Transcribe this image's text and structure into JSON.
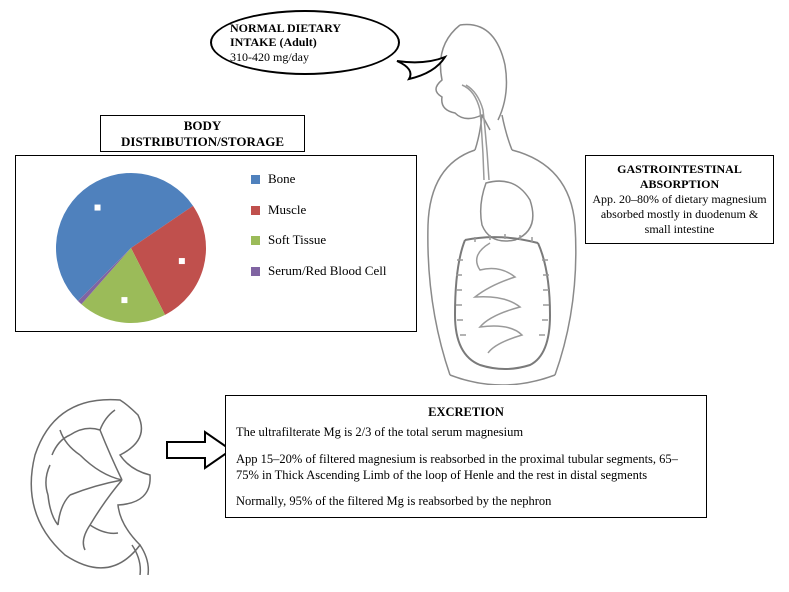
{
  "intake_bubble": {
    "line1": "NORMAL DIETARY",
    "line2": "INTAKE (Adult)",
    "line3": "310-420 mg/day"
  },
  "distribution": {
    "title_line1": "BODY",
    "title_line2": "DISTRIBUTION/STORAGE",
    "chart": {
      "type": "pie",
      "radius": 75,
      "rotation_deg": 135,
      "background": "#ffffff",
      "border_color": "#000000",
      "slices": [
        {
          "label": "Bone",
          "value": 53,
          "color": "#4f81bd"
        },
        {
          "label": "Muscle",
          "value": 27,
          "color": "#c0504d"
        },
        {
          "label": "Soft Tissue",
          "value": 19,
          "color": "#9bbb59"
        },
        {
          "label": "Serum/Red Blood Cell",
          "value": 1,
          "color": "#8064a2"
        }
      ],
      "label_marker_color": "#ffffff",
      "legend_fontsize": 13
    }
  },
  "gi_absorption": {
    "heading": "GASTROINTESTINAL ABSORPTION",
    "body": "App. 20–80% of dietary magnesium absorbed mostly in duodenum & small intestine"
  },
  "excretion": {
    "heading": "EXCRETION",
    "p1": "The ultrafilterate Mg is 2/3 of the total serum magnesium",
    "p2": "App 15–20% of filtered magnesium is reabsorbed in the proximal tubular segments, 65–75% in Thick Ascending Limb of the loop of Henle and the rest in distal segments",
    "p3": "Normally, 95% of the filtered Mg is reabsorbed by the nephron"
  },
  "anatomy": {
    "outline_color": "#7a7a7a",
    "outline_light": "#bdbdbd",
    "kidney_color": "#6b6b6b",
    "arrow_color": "#000000"
  }
}
